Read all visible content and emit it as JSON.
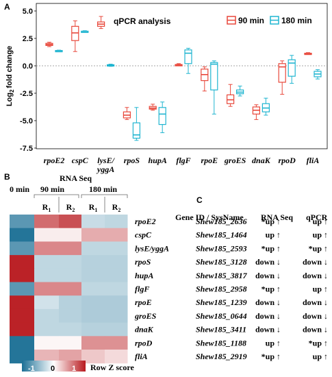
{
  "panel_labels": {
    "a": "A",
    "b": "B",
    "c": "C"
  },
  "chart_data": [
    {
      "type": "box",
      "title": "qPCR analysis",
      "ylabel_main": "Log",
      "ylabel_sub": "2",
      "ylabel_rest": "fold change",
      "ylim": [
        -7.5,
        5.0
      ],
      "yticks": [
        "5.0",
        "2.5",
        "0.0",
        "-2.5",
        "-5.0",
        "-7.5"
      ],
      "yticks_values": [
        5.0,
        2.5,
        0.0,
        -2.5,
        -5.0,
        -7.5
      ],
      "reference_line": 0,
      "categories": [
        "rpoE2",
        "cspC",
        "lysE/yggA",
        "rpoS",
        "hupA",
        "flgF",
        "rpoE",
        "groES",
        "dnaK",
        "rpoD",
        "fliA"
      ],
      "category_lines": [
        [
          "rpoE2"
        ],
        [
          "cspC"
        ],
        [
          "lysE/",
          "yggA"
        ],
        [
          "rpoS"
        ],
        [
          "hupA"
        ],
        [
          "flgF"
        ],
        [
          "rpoE"
        ],
        [
          "groES"
        ],
        [
          "dnaK"
        ],
        [
          "rpoD"
        ],
        [
          "fliA"
        ]
      ],
      "legend_position": "top-right",
      "series": [
        {
          "name": "90 min",
          "color": "#e8473a",
          "boxes": [
            {
              "category": "rpoE2",
              "min": 1.75,
              "q1": 1.85,
              "median": 1.95,
              "q3": 2.05,
              "max": 2.15
            },
            {
              "category": "cspC",
              "min": 1.3,
              "q1": 2.3,
              "median": 3.0,
              "q3": 3.6,
              "max": 4.1
            },
            {
              "category": "lysE/yggA",
              "min": 3.4,
              "q1": 3.6,
              "median": 3.8,
              "q3": 4.0,
              "max": 4.5
            },
            {
              "category": "rpoS",
              "min": -4.9,
              "q1": -4.75,
              "median": -4.5,
              "q3": -4.2,
              "max": -3.8
            },
            {
              "category": "hupA",
              "min": -4.05,
              "q1": -3.95,
              "median": -3.85,
              "q3": -3.7,
              "max": -3.5
            },
            {
              "category": "flgF",
              "min": 0.0,
              "q1": 0.02,
              "median": 0.07,
              "q3": 0.12,
              "max": 0.2
            },
            {
              "category": "rpoE",
              "min": -2.3,
              "q1": -1.35,
              "median": -0.8,
              "q3": -0.3,
              "max": -0.1
            },
            {
              "category": "groES",
              "min": -3.7,
              "q1": -3.45,
              "median": -3.1,
              "q3": -2.65,
              "max": -1.7
            },
            {
              "category": "dnaK",
              "min": -4.9,
              "q1": -4.4,
              "median": -4.05,
              "q3": -3.75,
              "max": -3.55
            },
            {
              "category": "rpoD",
              "min": -2.6,
              "q1": -1.5,
              "median": -0.1,
              "q3": 0.2,
              "max": 0.45
            },
            {
              "category": "fliA",
              "min": 1.05,
              "q1": 1.1,
              "median": 1.12,
              "q3": 1.15,
              "max": 1.2
            }
          ]
        },
        {
          "name": "180 min",
          "color": "#1fb5d0",
          "boxes": [
            {
              "category": "rpoE2",
              "min": 1.3,
              "q1": 1.33,
              "median": 1.37,
              "q3": 1.4,
              "max": 1.43
            },
            {
              "category": "cspC",
              "min": 3.05,
              "q1": 3.1,
              "median": 3.13,
              "q3": 3.16,
              "max": 3.2
            },
            {
              "category": "lysE/yggA",
              "min": -0.05,
              "q1": 0.0,
              "median": 0.05,
              "q3": 0.1,
              "max": 0.15
            },
            {
              "category": "rpoS",
              "min": -6.8,
              "q1": -6.6,
              "median": -6.3,
              "q3": -5.2,
              "max": -3.8
            },
            {
              "category": "hupA",
              "min": -6.1,
              "q1": -5.35,
              "median": -4.4,
              "q3": -3.8,
              "max": -3.3
            },
            {
              "category": "flgF",
              "min": -0.7,
              "q1": 0.2,
              "median": 1.15,
              "q3": 1.45,
              "max": 1.6
            },
            {
              "category": "rpoE",
              "min": -4.4,
              "q1": -2.2,
              "median": 0.15,
              "q3": 0.3,
              "max": 0.45
            },
            {
              "category": "groES",
              "min": -2.75,
              "q1": -2.55,
              "median": -2.4,
              "q3": -2.2,
              "max": -1.85
            },
            {
              "category": "dnaK",
              "min": -4.5,
              "q1": -4.2,
              "median": -3.85,
              "q3": -3.45,
              "max": -2.95
            },
            {
              "category": "rpoD",
              "min": -1.6,
              "q1": -0.95,
              "median": 0.25,
              "q3": 0.55,
              "max": 0.95
            },
            {
              "category": "fliA",
              "min": -1.2,
              "q1": -1.0,
              "median": -0.75,
              "q3": -0.5,
              "max": -0.35
            }
          ]
        }
      ]
    },
    {
      "type": "heatmap",
      "top_label": "RNA Seq",
      "col0_label": "0 min",
      "group_labels": [
        "90 min",
        "180 min"
      ],
      "columns": [
        {
          "main": "R",
          "sub": "1"
        },
        {
          "main": "R",
          "sub": "2"
        },
        {
          "main": "R",
          "sub": "1"
        },
        {
          "main": "R",
          "sub": "2"
        }
      ],
      "rows": [
        "rpoE2",
        "cspC",
        "lysE/yggA",
        "rpoS",
        "hupA",
        "flgF",
        "rpoE",
        "groES",
        "dnaK",
        "rpoD",
        "fliA"
      ],
      "values": [
        [
          -0.9,
          0.8,
          0.95,
          -0.3,
          -0.35
        ],
        [
          -1.2,
          0.1,
          0.1,
          0.45,
          0.45
        ],
        [
          -0.9,
          0.65,
          0.65,
          -0.35,
          -0.35
        ],
        [
          1.2,
          -0.35,
          -0.35,
          -0.4,
          -0.4
        ],
        [
          1.2,
          -0.35,
          -0.35,
          -0.4,
          -0.4
        ],
        [
          -0.9,
          0.65,
          0.65,
          -0.35,
          -0.35
        ],
        [
          1.2,
          -0.25,
          -0.4,
          -0.45,
          -0.45
        ],
        [
          1.2,
          -0.35,
          -0.4,
          -0.45,
          -0.45
        ],
        [
          1.2,
          -0.35,
          -0.35,
          -0.4,
          -0.4
        ],
        [
          -1.2,
          0.05,
          0.05,
          0.6,
          0.6
        ],
        [
          -1.2,
          0.4,
          0.5,
          0.3,
          0.2
        ]
      ],
      "colorbar": {
        "ticks": [
          "-1",
          "0",
          "1"
        ],
        "tick_values": [
          -1,
          0,
          1
        ],
        "label": "Row Z score",
        "low_color": "#1b6f95",
        "mid_color": "#ffffff",
        "high_color": "#b8191e"
      }
    },
    {
      "type": "table",
      "headers": [
        "Gene ID / SysName",
        "RNA Seq",
        "qPCR"
      ],
      "rows": [
        [
          "Shew185_2636",
          "*up ↑",
          "up ↑"
        ],
        [
          "Shew185_1464",
          "up ↑",
          "up ↑"
        ],
        [
          "Shew185_2593",
          "*up ↑",
          "*up ↑"
        ],
        [
          "Shew185_3128",
          "down ↓",
          "down ↓"
        ],
        [
          "Shew185_3817",
          "down ↓",
          "down ↓"
        ],
        [
          "Shew185_2958",
          "*up ↑",
          "up ↑"
        ],
        [
          "Shew185_1239",
          "down ↓",
          "down ↓"
        ],
        [
          "Shew185_0644",
          "down ↓",
          "down ↓"
        ],
        [
          "Shew185_3411",
          "down ↓",
          "down ↓"
        ],
        [
          "Shew185_1188",
          "up ↑",
          "*up ↑"
        ],
        [
          "Shew185_2919",
          "*up ↑",
          "up ↑"
        ]
      ]
    }
  ]
}
